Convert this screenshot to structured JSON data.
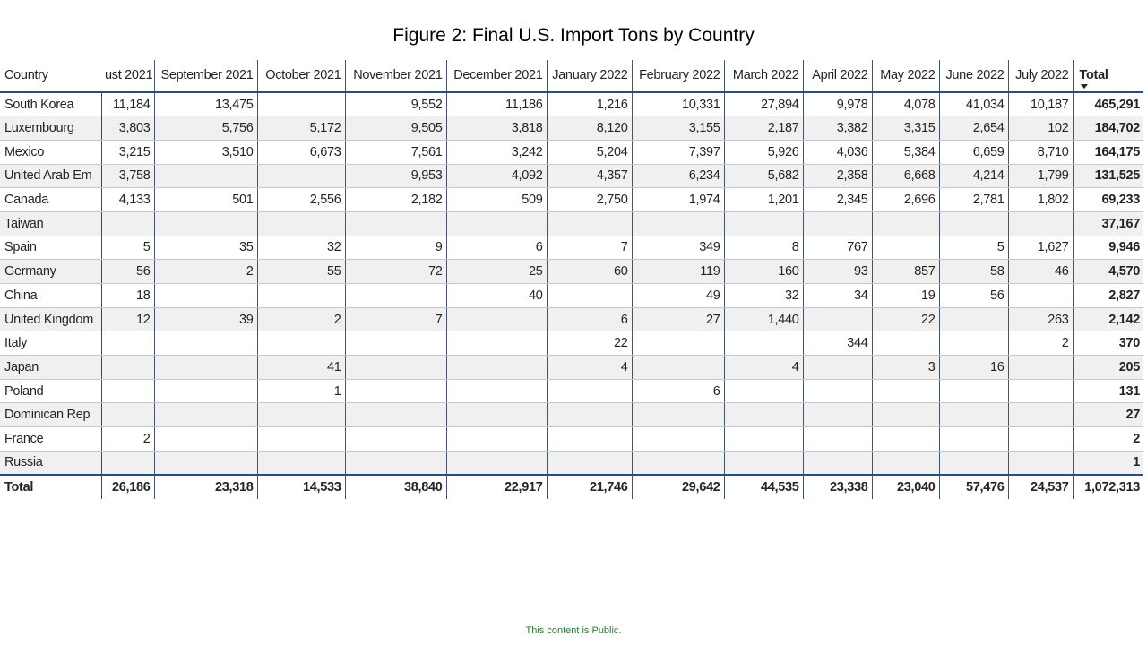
{
  "title": "Figure 2: Final U.S. Import Tons by Country",
  "footer": "This content is Public.",
  "chart_data": {
    "type": "table",
    "title": "Figure 2: Final U.S. Import Tons by Country",
    "columns": [
      "Country",
      "ust 2021",
      "September 2021",
      "October 2021",
      "November 2021",
      "December 2021",
      "January 2022",
      "February 2022",
      "March 2022",
      "April 2022",
      "May 2022",
      "June 2022",
      "July 2022",
      "Total"
    ],
    "rows": [
      [
        "South Korea",
        "11,184",
        "13,475",
        "",
        "9,552",
        "11,186",
        "1,216",
        "10,331",
        "27,894",
        "9,978",
        "4,078",
        "41,034",
        "10,187",
        "465,291"
      ],
      [
        "Luxembourg",
        "3,803",
        "5,756",
        "5,172",
        "9,505",
        "3,818",
        "8,120",
        "3,155",
        "2,187",
        "3,382",
        "3,315",
        "2,654",
        "102",
        "184,702"
      ],
      [
        "Mexico",
        "3,215",
        "3,510",
        "6,673",
        "7,561",
        "3,242",
        "5,204",
        "7,397",
        "5,926",
        "4,036",
        "5,384",
        "6,659",
        "8,710",
        "164,175"
      ],
      [
        "United Arab Em",
        "3,758",
        "",
        "",
        "9,953",
        "4,092",
        "4,357",
        "6,234",
        "5,682",
        "2,358",
        "6,668",
        "4,214",
        "1,799",
        "131,525"
      ],
      [
        "Canada",
        "4,133",
        "501",
        "2,556",
        "2,182",
        "509",
        "2,750",
        "1,974",
        "1,201",
        "2,345",
        "2,696",
        "2,781",
        "1,802",
        "69,233"
      ],
      [
        "Taiwan",
        "",
        "",
        "",
        "",
        "",
        "",
        "",
        "",
        "",
        "",
        "",
        "",
        "37,167"
      ],
      [
        "Spain",
        "5",
        "35",
        "32",
        "9",
        "6",
        "7",
        "349",
        "8",
        "767",
        "",
        "5",
        "1,627",
        "9,946"
      ],
      [
        "Germany",
        "56",
        "2",
        "55",
        "72",
        "25",
        "60",
        "119",
        "160",
        "93",
        "857",
        "58",
        "46",
        "4,570"
      ],
      [
        "China",
        "18",
        "",
        "",
        "",
        "40",
        "",
        "49",
        "32",
        "34",
        "19",
        "56",
        "",
        "2,827"
      ],
      [
        "United Kingdom",
        "12",
        "39",
        "2",
        "7",
        "",
        "6",
        "27",
        "1,440",
        "",
        "22",
        "",
        "263",
        "2,142"
      ],
      [
        "Italy",
        "",
        "",
        "",
        "",
        "",
        "22",
        "",
        "",
        "344",
        "",
        "",
        "2",
        "370"
      ],
      [
        "Japan",
        "",
        "",
        "41",
        "",
        "",
        "4",
        "",
        "4",
        "",
        "3",
        "16",
        "",
        "205"
      ],
      [
        "Poland",
        "",
        "",
        "1",
        "",
        "",
        "",
        "6",
        "",
        "",
        "",
        "",
        "",
        "131"
      ],
      [
        "Dominican Rep",
        "",
        "",
        "",
        "",
        "",
        "",
        "",
        "",
        "",
        "",
        "",
        "",
        "27"
      ],
      [
        "France",
        "2",
        "",
        "",
        "",
        "",
        "",
        "",
        "",
        "",
        "",
        "",
        "",
        "2"
      ],
      [
        "Russia",
        "",
        "",
        "",
        "",
        "",
        "",
        "",
        "",
        "",
        "",
        "",
        "",
        "1"
      ]
    ],
    "totals": [
      "Total",
      "26,186",
      "23,318",
      "14,533",
      "38,840",
      "22,917",
      "21,746",
      "29,642",
      "44,535",
      "23,338",
      "23,040",
      "57,476",
      "24,537",
      "1,072,313"
    ],
    "sorted_by": "Total",
    "sort_direction": "descending"
  }
}
